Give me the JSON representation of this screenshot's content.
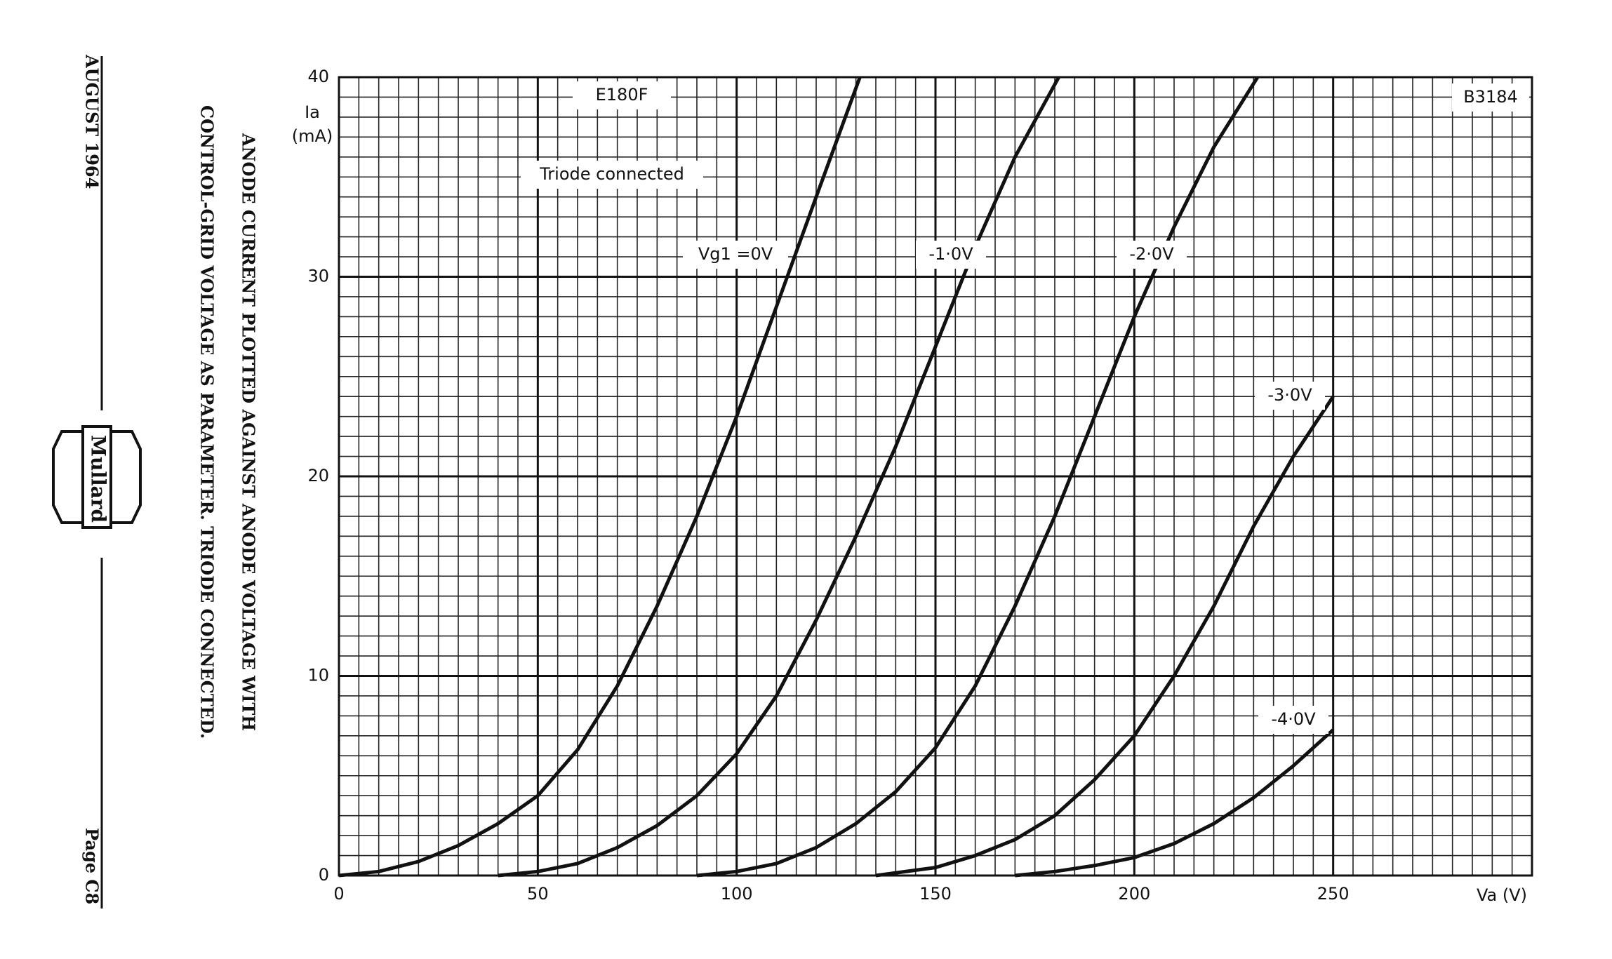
{
  "chart_data": {
    "type": "line",
    "header": "AUGUST 1964",
    "footer": "Page C8",
    "brand": "Mullard",
    "title_lines": [
      "ANODE CURRENT PLOTTED AGAINST ANODE VOLTAGE WITH",
      "CONTROL-GRID VOLTAGE AS PARAMETER. TRIODE CONNECTED."
    ],
    "valve": "E180F",
    "reference": "B3184",
    "note": "Triode connected",
    "ylabel": [
      "Ia",
      "(mA)"
    ],
    "xlabel": "Va (V)",
    "xlim": [
      0,
      300
    ],
    "xticks": [
      0,
      50,
      100,
      150,
      200,
      250
    ],
    "ylim": [
      0,
      40
    ],
    "yticks": [
      0,
      10,
      20,
      30,
      40
    ],
    "grid": true,
    "color": "#111111",
    "series": [
      {
        "name": "Vg1 =0V",
        "x": [
          0,
          10,
          20,
          30,
          40,
          50,
          60,
          70,
          80,
          90,
          100,
          110,
          120,
          131
        ],
        "values": [
          0,
          0.2,
          0.7,
          1.5,
          2.6,
          4,
          6.3,
          9.5,
          13.5,
          18,
          23,
          28.5,
          34,
          40
        ]
      },
      {
        "name": "-1·0V",
        "x": [
          40,
          50,
          60,
          70,
          80,
          90,
          100,
          110,
          120,
          130,
          140,
          150,
          160,
          170,
          181
        ],
        "values": [
          0,
          0.2,
          0.6,
          1.4,
          2.5,
          4,
          6.1,
          9,
          12.8,
          17,
          21.5,
          26.5,
          31.5,
          36,
          40
        ]
      },
      {
        "name": "-2·0V",
        "x": [
          90,
          100,
          110,
          120,
          130,
          140,
          150,
          160,
          170,
          180,
          190,
          200,
          210,
          220,
          231
        ],
        "values": [
          0,
          0.2,
          0.6,
          1.4,
          2.6,
          4.2,
          6.4,
          9.5,
          13.5,
          18,
          23,
          28,
          32.5,
          36.5,
          40
        ]
      },
      {
        "name": "-3·0V",
        "x": [
          135,
          150,
          160,
          170,
          180,
          190,
          200,
          210,
          220,
          230,
          240,
          250
        ],
        "values": [
          0,
          0.4,
          1,
          1.8,
          3,
          4.8,
          7,
          10,
          13.5,
          17.5,
          21,
          24
        ]
      },
      {
        "name": "-4·0V",
        "x": [
          170,
          180,
          190,
          200,
          210,
          220,
          230,
          240,
          250
        ],
        "values": [
          0,
          0.2,
          0.5,
          0.9,
          1.6,
          2.6,
          3.9,
          5.5,
          7.3
        ]
      }
    ]
  }
}
